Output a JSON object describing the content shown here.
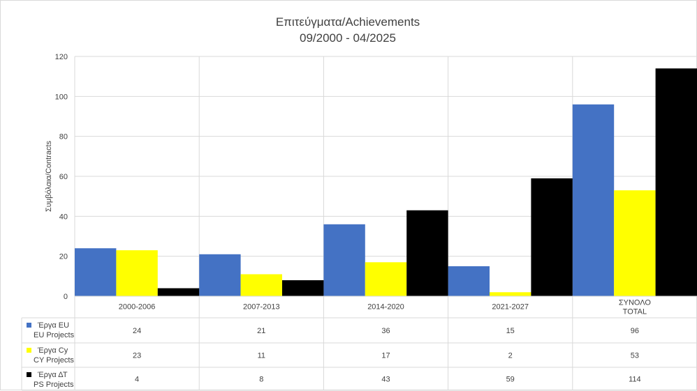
{
  "chart_data": {
    "type": "bar",
    "title": [
      "Επιτεύγματα/Achievements",
      "09/2000 - 04/2025"
    ],
    "ylabel": "Συμβόλαια/Contracts",
    "xlabel": "",
    "ylim": [
      0,
      120
    ],
    "yticks": [
      0,
      20,
      40,
      60,
      80,
      100,
      120
    ],
    "grid": true,
    "legend": "data-table",
    "categories": [
      [
        "2000-2006"
      ],
      [
        "2007-2013"
      ],
      [
        "2014-2020"
      ],
      [
        "2021-2027"
      ],
      [
        "ΣΥΝΟΛΟ",
        "TOTAL"
      ]
    ],
    "series": [
      {
        "name": [
          "Έργα EU",
          "EU Projects"
        ],
        "color": "#4472c4",
        "values": [
          24,
          21,
          36,
          15,
          96
        ]
      },
      {
        "name": [
          "Έργα Cy",
          "CY Projects"
        ],
        "color": "#ffff00",
        "values": [
          23,
          11,
          17,
          2,
          53
        ]
      },
      {
        "name": [
          "Έργα ΔΤ",
          "PS Projects"
        ],
        "color": "#000000",
        "values": [
          4,
          8,
          43,
          59,
          114
        ]
      }
    ]
  }
}
